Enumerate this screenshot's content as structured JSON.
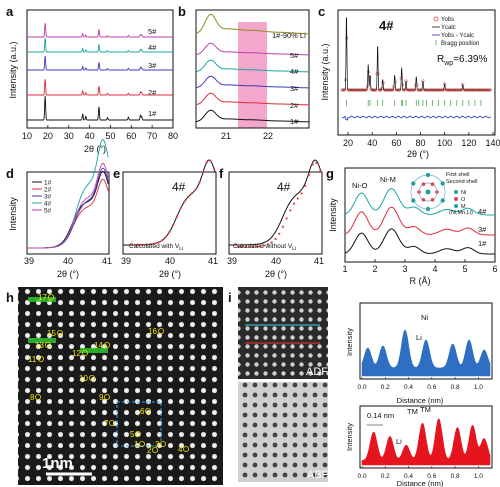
{
  "panel_letters": [
    "a",
    "b",
    "c",
    "d",
    "e",
    "f",
    "g",
    "h",
    "i"
  ],
  "colors": {
    "s1": "#111111",
    "s2": "#e02b3c",
    "s3": "#3b3bbf",
    "s4": "#19a5a3",
    "s5": "#c13fa9",
    "li90": "#8f8a1f",
    "highlight": "#f4a7cd",
    "yobs": "#e0443a",
    "ycalc": "#111111",
    "diff": "#2034b8",
    "bragg": "#4caf50",
    "fill_blue": "#2f6fc3",
    "fill_red": "#e6141e"
  },
  "panel_a": {
    "ylabel": "Intensity (a.u.)",
    "xlabel": "2θ (°)",
    "xticks": [
      "10",
      "20",
      "30",
      "40",
      "50",
      "60",
      "70",
      "80"
    ],
    "series_labels": [
      "5#",
      "4#",
      "3#",
      "2#",
      "1#"
    ]
  },
  "panel_b": {
    "xticks": [
      "21",
      "22"
    ],
    "series_labels": [
      "1#-90% Li",
      "5#",
      "4#",
      "3#",
      "2#",
      "1#"
    ]
  },
  "panel_c": {
    "title": "4#",
    "ylabel": "Intensity (a.u.)",
    "xlabel": "2θ (°)",
    "xticks": [
      "20",
      "40",
      "60",
      "80",
      "100",
      "120",
      "140"
    ],
    "legend": [
      "Yobs",
      "Ycalc",
      "Yobs - Ycalc",
      "Bragg position"
    ],
    "rwp": "R",
    "rwp_sub": "wp",
    "rwp_value": "=6.39%"
  },
  "panel_d": {
    "ylabel": "Intensity",
    "xlabel": "2θ (°)",
    "xticks": [
      "39",
      "40",
      "41"
    ],
    "legend": [
      "1#",
      "2#",
      "3#",
      "4#",
      "5#"
    ]
  },
  "panel_e": {
    "title": "4#",
    "xlabel": "2θ (°)",
    "xticks": [
      "39",
      "40",
      "41"
    ],
    "caption": "Calculated with V",
    "caption_sub": "Li"
  },
  "panel_f": {
    "title": "4#",
    "xlabel": "2θ (°)",
    "xticks": [
      "39",
      "40",
      "41"
    ],
    "caption": "Calculated without V",
    "caption_sub": "Li"
  },
  "panel_g": {
    "ylabel": "Intensity",
    "xlabel": "R (Å)",
    "xticks": [
      "1",
      "2",
      "3",
      "4",
      "5",
      "6"
    ],
    "peak_labels": [
      "Ni-O",
      "Ni-M"
    ],
    "series_labels": [
      "4#",
      "3#",
      "1#"
    ],
    "inset_labels": [
      "First shell",
      "Second shell"
    ],
    "inset_legend": [
      "Ni",
      "O",
      "M",
      "(Ni,Mn,Li)"
    ]
  },
  "panel_h": {
    "scale_bar": "1nm",
    "atom_labels": [
      "1",
      "2",
      "3",
      "4",
      "5",
      "6",
      "7",
      "8",
      "9",
      "10",
      "11",
      "12",
      "13",
      "14",
      "15",
      "16",
      "17"
    ]
  },
  "panel_i": {
    "adf": "ADF",
    "abf": "ABF",
    "top_plot": {
      "ylabel": "Intensity",
      "xlabel": "Distance (nm)",
      "labels": [
        "Ni",
        "Li"
      ],
      "xticks": [
        "0.0",
        "0.2",
        "0.4",
        "0.6",
        "0.8",
        "1.0"
      ]
    },
    "bottom_plot": {
      "ylabel": "Intensity",
      "xlabel": "Distance (nm)",
      "labels": [
        "0.14 nm",
        "Li",
        "TM",
        "TM"
      ],
      "xticks": [
        "0.0",
        "0.2",
        "0.4",
        "0.6",
        "0.8",
        "1.0"
      ]
    }
  }
}
